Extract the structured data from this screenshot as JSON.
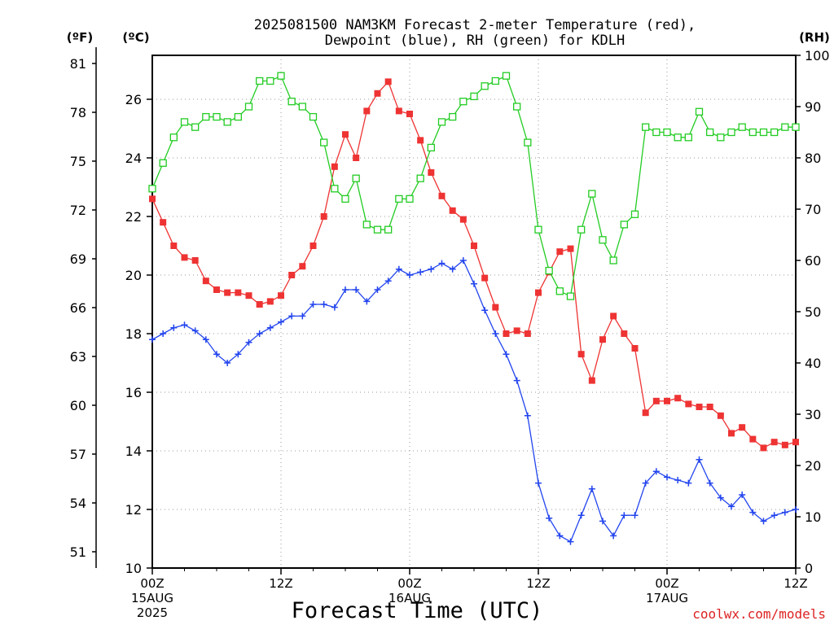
{
  "chart_data": {
    "type": "line",
    "title_line1": "2025081500 NAM3KM Forecast 2-meter Temperature (red),",
    "title_line2": "Dewpoint (blue), RH (green) for KDLH",
    "left_outer_unit": "(ºF)",
    "left_inner_unit": "(ºC)",
    "right_unit": "(RH)",
    "xlabel": "Forecast Time (UTC)",
    "credit": "coolwx.com/models",
    "x_range_hours": [
      0,
      60
    ],
    "y_celsius_range": [
      10,
      27.5
    ],
    "y_rh_range": [
      0,
      100
    ],
    "celsius_ticks": [
      10,
      12,
      14,
      16,
      18,
      20,
      22,
      24,
      26
    ],
    "fahrenheit_ticks": [
      51,
      54,
      57,
      60,
      63,
      66,
      69,
      72,
      75,
      78,
      81
    ],
    "rh_ticks": [
      0,
      10,
      20,
      30,
      40,
      50,
      60,
      70,
      80,
      90,
      100
    ],
    "x_ticks": [
      {
        "hour": 0,
        "label": "00Z",
        "date": "15AUG",
        "year": "2025"
      },
      {
        "hour": 12,
        "label": "12Z",
        "date": "",
        "year": ""
      },
      {
        "hour": 24,
        "label": "00Z",
        "date": "16AUG",
        "year": ""
      },
      {
        "hour": 36,
        "label": "12Z",
        "date": "",
        "year": ""
      },
      {
        "hour": 48,
        "label": "00Z",
        "date": "17AUG",
        "year": ""
      },
      {
        "hour": 60,
        "label": "12Z",
        "date": "",
        "year": ""
      }
    ],
    "grid": true,
    "series": [
      {
        "key": "temperature",
        "unit": "°C",
        "color": "#ee3333",
        "marker": "filled-square",
        "x": [
          0,
          1,
          2,
          3,
          4,
          5,
          6,
          7,
          8,
          9,
          10,
          11,
          12,
          13,
          14,
          15,
          16,
          17,
          18,
          19,
          20,
          21,
          22,
          23,
          24,
          25,
          26,
          27,
          28,
          29,
          30,
          31,
          32,
          33,
          34,
          35,
          36,
          37,
          38,
          39,
          40,
          41,
          42,
          43,
          44,
          45,
          46,
          47,
          48,
          49,
          50,
          51,
          52,
          53,
          54,
          55,
          56,
          57,
          58,
          59,
          60
        ],
        "values": [
          22.6,
          21.8,
          21.0,
          20.6,
          20.5,
          19.8,
          19.5,
          19.4,
          19.4,
          19.3,
          19.0,
          19.1,
          19.3,
          20.0,
          20.3,
          21.0,
          22.0,
          23.7,
          24.8,
          24.0,
          25.6,
          26.2,
          26.6,
          25.6,
          25.5,
          24.6,
          23.5,
          22.7,
          22.2,
          21.9,
          21.0,
          19.9,
          18.9,
          18.0,
          18.1,
          18.0,
          19.4,
          20.1,
          20.8,
          20.9,
          17.3,
          16.4,
          17.8,
          18.6,
          18.0,
          17.5,
          15.3,
          15.7,
          15.7,
          15.8,
          15.6,
          15.5,
          15.5,
          15.2,
          14.6,
          14.8,
          14.4,
          14.1,
          14.3,
          14.2,
          14.3
        ]
      },
      {
        "key": "dewpoint",
        "unit": "°C",
        "color": "#2244ee",
        "marker": "plus",
        "x": [
          0,
          1,
          2,
          3,
          4,
          5,
          6,
          7,
          8,
          9,
          10,
          11,
          12,
          13,
          14,
          15,
          16,
          17,
          18,
          19,
          20,
          21,
          22,
          23,
          24,
          25,
          26,
          27,
          28,
          29,
          30,
          31,
          32,
          33,
          34,
          35,
          36,
          37,
          38,
          39,
          40,
          41,
          42,
          43,
          44,
          45,
          46,
          47,
          48,
          49,
          50,
          51,
          52,
          53,
          54,
          55,
          56,
          57,
          58,
          59,
          60
        ],
        "values": [
          17.8,
          18.0,
          18.2,
          18.3,
          18.1,
          17.8,
          17.3,
          17.0,
          17.3,
          17.7,
          18.0,
          18.2,
          18.4,
          18.6,
          18.6,
          19.0,
          19.0,
          18.9,
          19.5,
          19.5,
          19.1,
          19.5,
          19.8,
          20.2,
          20.0,
          20.1,
          20.2,
          20.4,
          20.2,
          20.5,
          19.7,
          18.8,
          18.0,
          17.3,
          16.4,
          15.2,
          12.9,
          11.7,
          11.1,
          10.9,
          11.8,
          12.7,
          11.6,
          11.1,
          11.8,
          11.8,
          12.9,
          13.3,
          13.1,
          13.0,
          12.9,
          13.7,
          12.9,
          12.4,
          12.1,
          12.5,
          11.9,
          11.6,
          11.8,
          11.9,
          12.0
        ]
      },
      {
        "key": "relative_humidity",
        "unit": "%",
        "color": "#22cc22",
        "marker": "open-square",
        "x": [
          0,
          1,
          2,
          3,
          4,
          5,
          6,
          7,
          8,
          9,
          10,
          11,
          12,
          13,
          14,
          15,
          16,
          17,
          18,
          19,
          20,
          21,
          22,
          23,
          24,
          25,
          26,
          27,
          28,
          29,
          30,
          31,
          32,
          33,
          34,
          35,
          36,
          37,
          38,
          39,
          40,
          41,
          42,
          43,
          44,
          45,
          46,
          47,
          48,
          49,
          50,
          51,
          52,
          53,
          54,
          55,
          56,
          57,
          58,
          59,
          60
        ],
        "values": [
          74,
          79,
          84,
          87,
          86,
          88,
          88,
          87,
          88,
          90,
          95,
          95,
          96,
          91,
          90,
          88,
          83,
          74,
          72,
          76,
          67,
          66,
          66,
          72,
          72,
          76,
          82,
          87,
          88,
          91,
          92,
          94,
          95,
          96,
          90,
          83,
          66,
          58,
          54,
          53,
          66,
          73,
          64,
          60,
          67,
          69,
          86,
          85,
          85,
          84,
          84,
          89,
          85,
          84,
          85,
          86,
          85,
          85,
          85,
          86,
          86
        ]
      }
    ]
  }
}
